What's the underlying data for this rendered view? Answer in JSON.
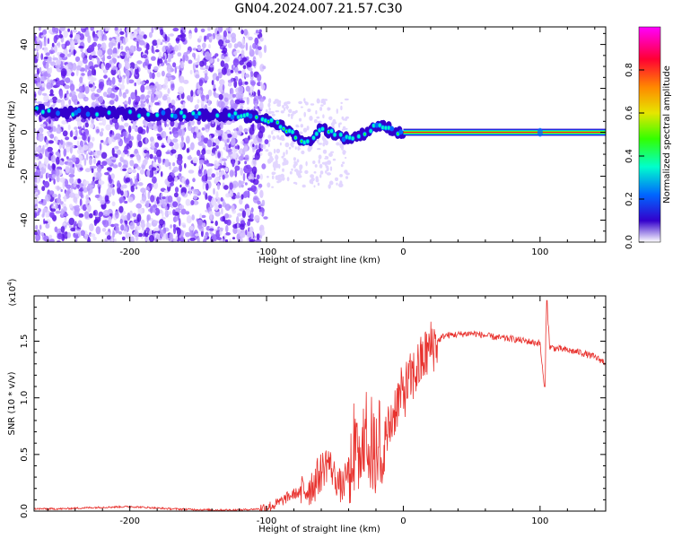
{
  "page_title": "GN04.2024.007.21.57.C30",
  "colors": {
    "snr_line": "#e8322e",
    "spectrogram_scatter": "#7b2ff7",
    "colormap": [
      "#ff00ff",
      "#ff0033",
      "#ff8800",
      "#e6e600",
      "#33ff00",
      "#00ffcc",
      "#0066ff",
      "#3300cc",
      "#ffffff"
    ]
  },
  "chart_data": [
    {
      "type": "heatmap",
      "title": "",
      "xlabel": "Height of straight line (km)",
      "ylabel": "Frequency (Hz)",
      "xlim": [
        -270,
        148
      ],
      "ylim": [
        -50,
        48
      ],
      "xticks": [
        -200,
        -100,
        0,
        100
      ],
      "yticks": [
        -40,
        -20,
        0,
        20,
        40
      ],
      "grid": false,
      "colorbar": {
        "label": "Normalized spectral amplitude",
        "range": [
          0.0,
          1.0
        ],
        "ticks": [
          "0.0",
          "0.2",
          "0.4",
          "0.6",
          "0.8"
        ],
        "colors": [
          "#ffffff",
          "#3300cc",
          "#0066ff",
          "#00ffcc",
          "#33ff00",
          "#e6e600",
          "#ff8800",
          "#ff0033",
          "#ff00ff"
        ]
      },
      "ridge": {
        "x": [
          -268,
          -250,
          -230,
          -210,
          -190,
          -170,
          -150,
          -130,
          -110,
          -100,
          -90,
          -80,
          -70,
          -60,
          -50,
          -40,
          -30,
          -20,
          -10,
          -5,
          0,
          50,
          100,
          148
        ],
        "y": [
          10,
          9,
          9,
          9,
          8,
          8,
          8,
          8,
          7,
          6,
          3,
          -1,
          -5,
          2,
          -1,
          -3,
          -1,
          3,
          2,
          0,
          0,
          0,
          0,
          0
        ]
      }
    },
    {
      "type": "line",
      "title": "",
      "xlabel": "Height of straight line (km)",
      "ylabel": "SNR (10 * v/v)",
      "y_multiplier_label": "(x10",
      "y_multiplier_exp": "4",
      "y_multiplier_close": ")",
      "xlim": [
        -270,
        148
      ],
      "ylim": [
        0,
        1.9
      ],
      "xticks": [
        -200,
        -100,
        0,
        100
      ],
      "yticks": [
        "0.0",
        "0.5",
        "1.0",
        "1.5"
      ],
      "grid": false,
      "series": [
        {
          "x": [
            -270,
            -250,
            -230,
            -200,
            -170,
            -140,
            -120,
            -105,
            -95,
            -90,
            -85,
            -80,
            -75,
            -70,
            -65,
            -60,
            -55,
            -50,
            -45,
            -40,
            -35,
            -30,
            -25,
            -20,
            -15,
            -10,
            -5,
            0,
            5,
            10,
            15,
            20,
            25,
            30,
            40,
            50,
            60,
            70,
            80,
            90,
            95,
            100,
            103,
            105,
            107,
            110,
            120,
            130,
            140,
            148
          ],
          "y": [
            0.02,
            0.02,
            0.03,
            0.04,
            0.02,
            0.01,
            0.01,
            0.02,
            0.05,
            0.08,
            0.12,
            0.15,
            0.17,
            0.2,
            0.25,
            0.35,
            0.45,
            0.3,
            0.2,
            0.35,
            0.45,
            0.55,
            0.5,
            0.45,
            0.55,
            0.75,
            0.95,
            1.05,
            1.15,
            1.25,
            1.35,
            1.45,
            1.5,
            1.55,
            1.56,
            1.57,
            1.55,
            1.53,
            1.52,
            1.5,
            1.49,
            1.48,
            1.1,
            1.86,
            1.45,
            1.44,
            1.42,
            1.4,
            1.36,
            1.31
          ]
        }
      ]
    }
  ]
}
